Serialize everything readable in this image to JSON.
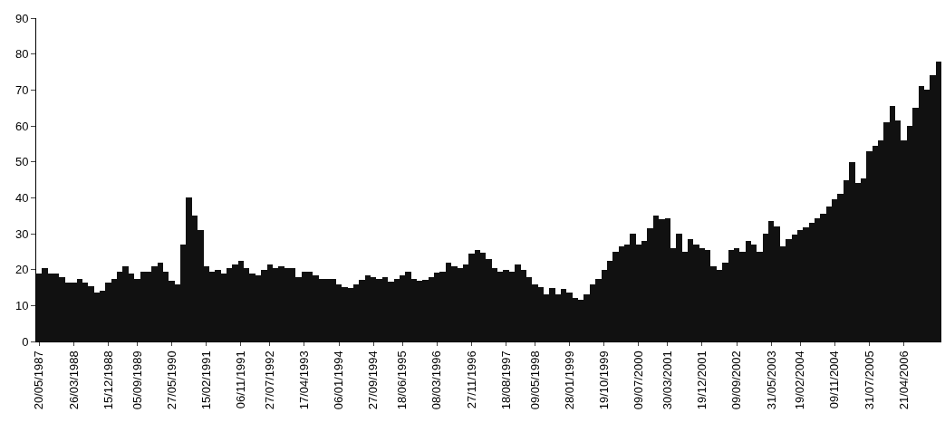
{
  "chart_data": {
    "type": "bar",
    "categories": [
      "20/05/1987",
      null,
      null,
      null,
      null,
      null,
      "26/03/1988",
      null,
      null,
      null,
      null,
      null,
      "15/12/1988",
      null,
      null,
      null,
      null,
      "05/09/1989",
      null,
      null,
      null,
      null,
      null,
      "27/05/1990",
      null,
      null,
      null,
      null,
      null,
      "15/02/1991",
      null,
      null,
      null,
      null,
      null,
      "06/11/1991",
      null,
      null,
      null,
      null,
      "27/07/1992",
      null,
      null,
      null,
      null,
      null,
      "17/04/1993",
      null,
      null,
      null,
      null,
      null,
      "06/01/1994",
      null,
      null,
      null,
      null,
      null,
      "27/09/1994",
      null,
      null,
      null,
      null,
      "18/06/1995",
      null,
      null,
      null,
      null,
      null,
      "08/03/1996",
      null,
      null,
      null,
      null,
      null,
      "27/11/1996",
      null,
      null,
      null,
      null,
      null,
      "18/08/1997",
      null,
      null,
      null,
      null,
      "09/05/1998",
      null,
      null,
      null,
      null,
      null,
      "28/01/1999",
      null,
      null,
      null,
      null,
      null,
      "19/10/1999",
      null,
      null,
      null,
      null,
      null,
      "09/07/2000",
      null,
      null,
      null,
      null,
      "30/03/2001",
      null,
      null,
      null,
      null,
      null,
      "19/12/2001",
      null,
      null,
      null,
      null,
      null,
      "09/09/2002",
      null,
      null,
      null,
      null,
      null,
      "31/05/2003",
      null,
      null,
      null,
      null,
      "19/02/2004",
      null,
      null,
      null,
      null,
      null,
      "09/11/2004",
      null,
      null,
      null,
      null,
      null,
      "31/07/2005",
      null,
      null,
      null,
      null,
      null,
      "21/04/2006",
      null,
      null,
      null,
      null,
      null,
      null
    ],
    "values": [
      19,
      20.5,
      19,
      19,
      18,
      16.5,
      16.5,
      17.5,
      16.5,
      15.5,
      13.5,
      14,
      16.5,
      17.5,
      19.5,
      21,
      19,
      17.5,
      19.5,
      19.5,
      21,
      22,
      19.5,
      17,
      16,
      27,
      40,
      35,
      31,
      21,
      19.5,
      20,
      19,
      20.5,
      21.5,
      22.5,
      20.5,
      19,
      18.5,
      20,
      21.5,
      20.5,
      21,
      20.5,
      20.5,
      18,
      19.5,
      19.5,
      18.5,
      17.5,
      17.5,
      17.3,
      16,
      15.2,
      15,
      16,
      17.2,
      18.5,
      18,
      17.5,
      18,
      16.7,
      17.5,
      18.5,
      19.3,
      17.5,
      16.8,
      17.2,
      18,
      19.2,
      19.5,
      22,
      21,
      20.3,
      21.5,
      24.5,
      25.5,
      24.8,
      23,
      20.5,
      19.5,
      20,
      19.5,
      21.5,
      20,
      18,
      16,
      15.2,
      13,
      14.8,
      13,
      14.5,
      13.5,
      12,
      11.5,
      13,
      15.8,
      17.3,
      19.8,
      22.5,
      25,
      26.5,
      27,
      30,
      27,
      28,
      31.5,
      35,
      34,
      34.2,
      26,
      30,
      25,
      28.5,
      27,
      26,
      25.5,
      21,
      19.8,
      22,
      25.5,
      26,
      25,
      28,
      27,
      25,
      30,
      33.5,
      32,
      26.5,
      28.5,
      29.8,
      31,
      31.8,
      33,
      34.2,
      35.5,
      37.5,
      39.5,
      41,
      45,
      50,
      44,
      45.5,
      53,
      54.5,
      56,
      61,
      65.5,
      61.5,
      56,
      60,
      65,
      71,
      70,
      74,
      78
    ],
    "color": "#111111",
    "ylim": [
      0,
      90
    ],
    "yticks": [
      0,
      10,
      20,
      30,
      40,
      50,
      60,
      70,
      80,
      90
    ],
    "legend": false
  }
}
